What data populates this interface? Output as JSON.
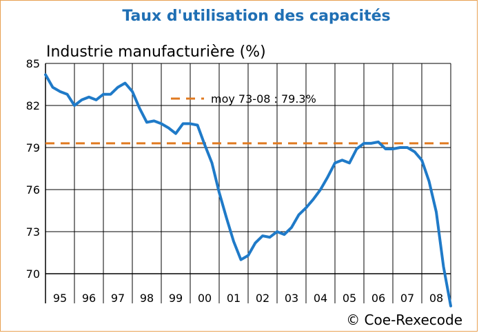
{
  "chart_data": {
    "type": "line",
    "title": "Taux d'utilisation des capacités",
    "subtitle": "Industrie manufacturière (%)",
    "credit": "© Coe-Rexecode",
    "ylim": [
      70,
      85
    ],
    "yticks": [
      "85",
      "82",
      "79",
      "76",
      "73",
      "70"
    ],
    "ytick_values": [
      85,
      82,
      79,
      76,
      73,
      70
    ],
    "categories": [
      "95",
      "96",
      "97",
      "98",
      "99",
      "00",
      "01",
      "02",
      "03",
      "04",
      "05",
      "06",
      "07",
      "08"
    ],
    "xlim": [
      1995,
      2009
    ],
    "grid": true,
    "colors": {
      "series": "#1f7ac8",
      "mean": "#e07a20",
      "frame": "#e8a050",
      "title": "#1f6fb4"
    },
    "reference_line": {
      "label": "moy 73-08 : 79.3%",
      "value": 79.3
    },
    "series": [
      {
        "x": [
          1995.0,
          1995.25,
          1995.5,
          1995.75,
          1996.0,
          1996.25,
          1996.5,
          1996.75,
          1997.0,
          1997.25,
          1997.5,
          1997.75,
          1998.0,
          1998.25,
          1998.5,
          1998.75,
          1999.0,
          1999.25,
          1999.5,
          1999.75,
          2000.0,
          2000.25,
          2000.5,
          2000.75,
          2001.0,
          2001.25,
          2001.5,
          2001.75,
          2002.0,
          2002.25,
          2002.5,
          2002.75,
          2003.0,
          2003.25,
          2003.5,
          2003.75,
          2004.0,
          2004.25,
          2004.5,
          2004.75,
          2005.0,
          2005.25,
          2005.5,
          2005.75,
          2006.0,
          2006.25,
          2006.5,
          2006.75,
          2007.0,
          2007.25,
          2007.5,
          2007.75,
          2008.0,
          2008.25,
          2008.5,
          2008.75,
          2009.0
        ],
        "values": [
          84.2,
          83.3,
          83.0,
          82.8,
          82.0,
          82.4,
          82.6,
          82.4,
          82.8,
          82.8,
          83.3,
          83.6,
          83.0,
          81.8,
          80.8,
          80.9,
          80.7,
          80.4,
          80.0,
          80.7,
          80.7,
          80.6,
          79.2,
          77.9,
          75.8,
          74.0,
          72.3,
          71.0,
          71.3,
          72.2,
          72.7,
          72.6,
          73.0,
          72.8,
          73.3,
          74.2,
          74.7,
          75.3,
          76.0,
          76.9,
          77.9,
          78.1,
          77.9,
          78.9,
          79.3,
          79.3,
          79.4,
          78.9,
          78.9,
          79.0,
          79.0,
          78.7,
          78.1,
          76.6,
          74.4,
          70.5,
          67.7
        ]
      }
    ]
  }
}
